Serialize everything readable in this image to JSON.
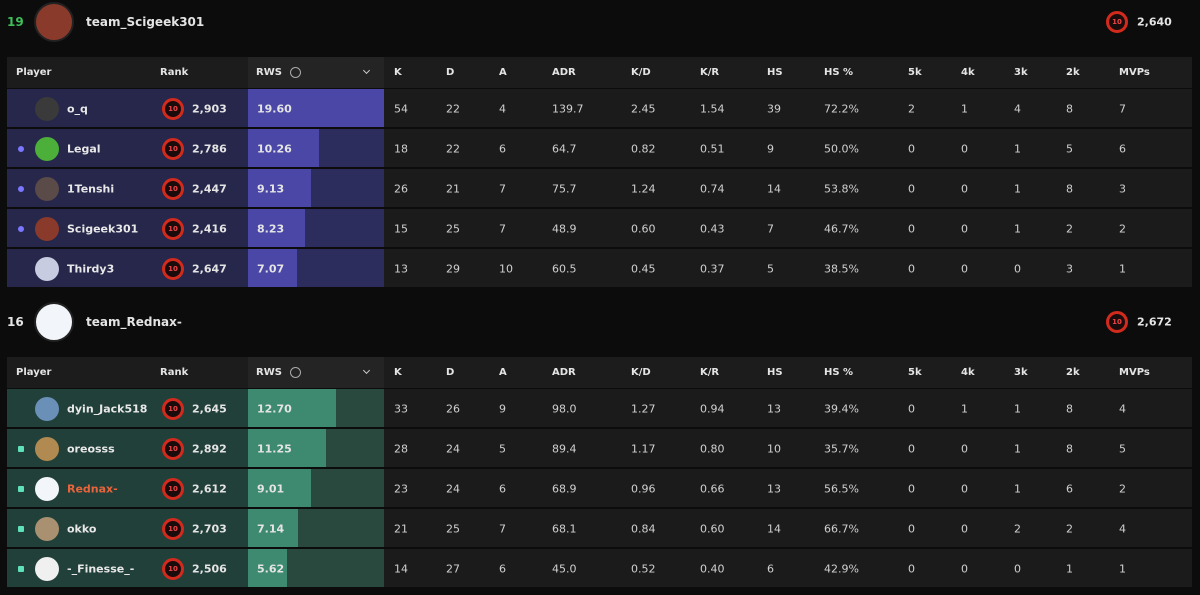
{
  "teams": [
    {
      "score": "19",
      "score_color": "#3fbf5a",
      "name": "team_Scigeek301",
      "level": "10",
      "rating": "2,640",
      "avatar_color": "#8a3a2a",
      "cell_color": "#26274a",
      "rws_cell_color": "#2c2d5c",
      "bar_color": "#4a47a6",
      "columns": [
        "Player",
        "Rank",
        "RWS",
        "K",
        "D",
        "A",
        "ADR",
        "K/D",
        "K/R",
        "HS",
        "HS %",
        "5k",
        "4k",
        "3k",
        "2k",
        "MVPs"
      ],
      "players": [
        {
          "name": "o_q",
          "level": "10",
          "rank": "2,903",
          "rws": "19.60",
          "stats": [
            "54",
            "22",
            "4",
            "139.7",
            "2.45",
            "1.54",
            "39",
            "72.2%",
            "2",
            "1",
            "4",
            "8",
            "7"
          ],
          "avatar": "#3a3a3a"
        },
        {
          "name": "Legal",
          "marker": true,
          "level": "10",
          "rank": "2,786",
          "rws": "10.26",
          "stats": [
            "18",
            "22",
            "6",
            "64.7",
            "0.82",
            "0.51",
            "9",
            "50.0%",
            "0",
            "0",
            "1",
            "5",
            "6"
          ],
          "avatar": "#4caf3a"
        },
        {
          "name": "1Tenshi",
          "marker": true,
          "level": "10",
          "rank": "2,447",
          "rws": "9.13",
          "stats": [
            "26",
            "21",
            "7",
            "75.7",
            "1.24",
            "0.74",
            "14",
            "53.8%",
            "0",
            "0",
            "1",
            "8",
            "3"
          ],
          "avatar": "#5a4a48"
        },
        {
          "name": "Scigeek301",
          "marker": true,
          "level": "10",
          "rank": "2,416",
          "rws": "8.23",
          "stats": [
            "15",
            "25",
            "7",
            "48.9",
            "0.60",
            "0.43",
            "7",
            "46.7%",
            "0",
            "0",
            "1",
            "2",
            "2"
          ],
          "avatar": "#8a3a2a"
        },
        {
          "name": "Thirdy3",
          "level": "10",
          "rank": "2,647",
          "rws": "7.07",
          "stats": [
            "13",
            "29",
            "10",
            "60.5",
            "0.45",
            "0.37",
            "5",
            "38.5%",
            "0",
            "0",
            "0",
            "3",
            "1"
          ],
          "avatar": "#c8cce0"
        }
      ]
    },
    {
      "score": "16",
      "score_color": "#e6e6e6",
      "name": "team_Rednax-",
      "level": "10",
      "rating": "2,672",
      "avatar_color": "#f2f6fa",
      "cell_color": "#22403a",
      "rws_cell_color": "#29493f",
      "bar_color": "#3e8a70",
      "columns": [
        "Player",
        "Rank",
        "RWS",
        "K",
        "D",
        "A",
        "ADR",
        "K/D",
        "K/R",
        "HS",
        "HS %",
        "5k",
        "4k",
        "3k",
        "2k",
        "MVPs"
      ],
      "players": [
        {
          "name": "dyin_Jack518",
          "level": "10",
          "rank": "2,645",
          "rws": "12.70",
          "stats": [
            "33",
            "26",
            "9",
            "98.0",
            "1.27",
            "0.94",
            "13",
            "39.4%",
            "0",
            "1",
            "1",
            "8",
            "4"
          ],
          "avatar": "#6a90b8"
        },
        {
          "name": "oreosss",
          "marker": true,
          "level": "10",
          "rank": "2,892",
          "rws": "11.25",
          "stats": [
            "28",
            "24",
            "5",
            "89.4",
            "1.17",
            "0.80",
            "10",
            "35.7%",
            "0",
            "0",
            "1",
            "8",
            "5"
          ],
          "avatar": "#b08a50"
        },
        {
          "name": "Rednax-",
          "marker": true,
          "name_color": "#e8643c",
          "level": "10",
          "rank": "2,612",
          "rws": "9.01",
          "stats": [
            "23",
            "24",
            "6",
            "68.9",
            "0.96",
            "0.66",
            "13",
            "56.5%",
            "0",
            "0",
            "1",
            "6",
            "2"
          ],
          "avatar": "#f2f6fa"
        },
        {
          "name": "okko",
          "marker": true,
          "level": "10",
          "rank": "2,703",
          "rws": "7.14",
          "stats": [
            "21",
            "25",
            "7",
            "68.1",
            "0.84",
            "0.60",
            "14",
            "66.7%",
            "0",
            "0",
            "2",
            "2",
            "4"
          ],
          "avatar": "#a89070"
        },
        {
          "name": "-_Finesse_-",
          "marker": true,
          "level": "10",
          "rank": "2,506",
          "rws": "5.62",
          "stats": [
            "14",
            "27",
            "6",
            "45.0",
            "0.52",
            "0.40",
            "6",
            "42.9%",
            "0",
            "0",
            "0",
            "1",
            "1"
          ],
          "avatar": "#f0f0f0"
        }
      ]
    }
  ]
}
